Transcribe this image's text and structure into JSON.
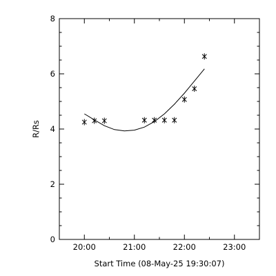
{
  "chart_data": {
    "type": "scatter",
    "xlabel": "Start Time (08-May-25 19:30:07)",
    "ylabel": "R/Rs",
    "x_ticks": [
      {
        "value": "20:00",
        "label": "20:00"
      },
      {
        "value": "21:00",
        "label": "21:00"
      },
      {
        "value": "22:00",
        "label": "22:00"
      },
      {
        "value": "23:00",
        "label": "23:00"
      }
    ],
    "y_ticks": [
      0,
      2,
      4,
      6,
      8
    ],
    "xlim": [
      "19:30",
      "23:30"
    ],
    "ylim": [
      0,
      8
    ],
    "marker": "*",
    "series": [
      {
        "points": [
          {
            "x": "20:00",
            "y": 4.25
          },
          {
            "x": "20:12",
            "y": 4.3
          },
          {
            "x": "20:24",
            "y": 4.3
          },
          {
            "x": "21:12",
            "y": 4.32
          },
          {
            "x": "21:24",
            "y": 4.32
          },
          {
            "x": "21:36",
            "y": 4.32
          },
          {
            "x": "21:48",
            "y": 4.32
          },
          {
            "x": "22:00",
            "y": 5.07
          },
          {
            "x": "22:12",
            "y": 5.46
          },
          {
            "x": "22:24",
            "y": 6.63
          }
        ]
      }
    ],
    "fit_curve": [
      {
        "x": "20:00",
        "y": 4.55
      },
      {
        "x": "20:12",
        "y": 4.33
      },
      {
        "x": "20:24",
        "y": 4.12
      },
      {
        "x": "20:36",
        "y": 3.98
      },
      {
        "x": "20:48",
        "y": 3.93
      },
      {
        "x": "21:00",
        "y": 3.96
      },
      {
        "x": "21:12",
        "y": 4.07
      },
      {
        "x": "21:24",
        "y": 4.27
      },
      {
        "x": "21:36",
        "y": 4.55
      },
      {
        "x": "21:48",
        "y": 4.9
      },
      {
        "x": "22:00",
        "y": 5.3
      },
      {
        "x": "22:12",
        "y": 5.74
      },
      {
        "x": "22:24",
        "y": 6.18
      }
    ],
    "grid": false
  }
}
